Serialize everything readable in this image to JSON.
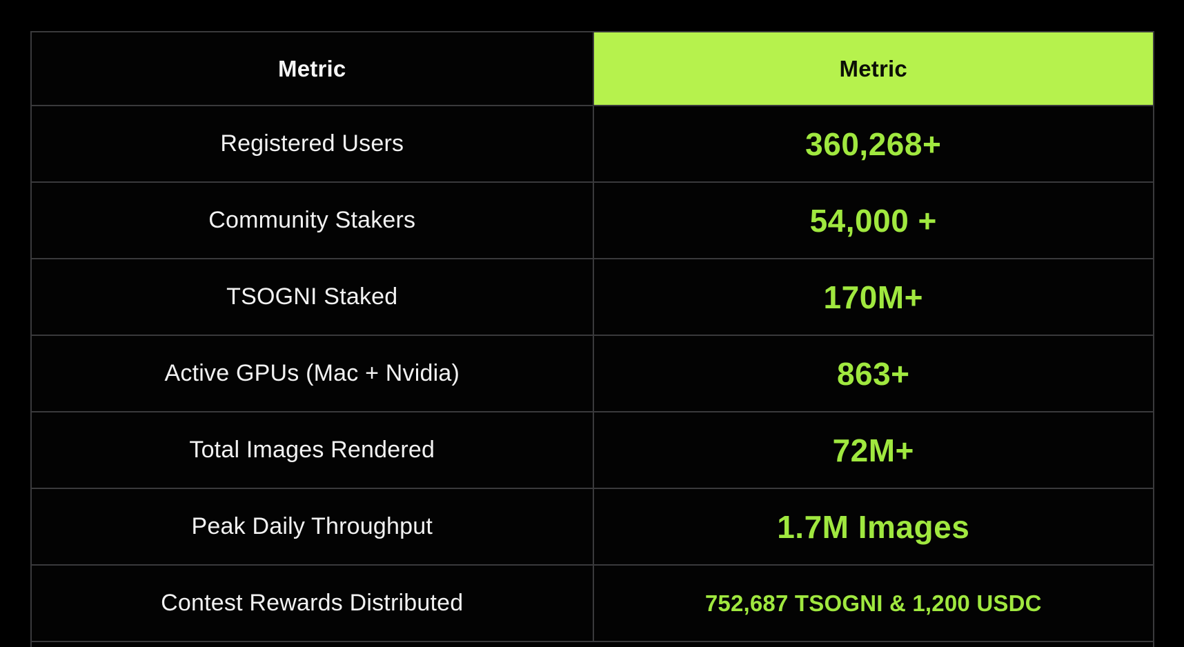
{
  "colors": {
    "accent_header_bg": "#b6f24d",
    "accent_value_text": "#a0e83f",
    "border": "#3a3a3c",
    "background": "#000000",
    "label_text": "#f2f2f2",
    "header_text_on_green": "#0c0f07"
  },
  "table": {
    "header": {
      "left": "Metric",
      "right": "Metric"
    },
    "rows": [
      {
        "metric": "Registered Users",
        "value": "360,268+",
        "value_small": false
      },
      {
        "metric": "Community Stakers",
        "value": "54,000 +",
        "value_small": false
      },
      {
        "metric": "TSOGNI Staked",
        "value": "170M+",
        "value_small": false
      },
      {
        "metric": "Active GPUs (Mac + Nvidia)",
        "value": "863+",
        "value_small": false
      },
      {
        "metric": "Total Images Rendered",
        "value": "72M+",
        "value_small": false
      },
      {
        "metric": "Peak Daily Throughput",
        "value": "1.7M Images",
        "value_small": false
      },
      {
        "metric": "Contest Rewards Distributed",
        "value": "752,687 TSOGNI & 1,200 USDC",
        "value_small": true
      }
    ]
  },
  "chart_data": {
    "type": "table",
    "title": "",
    "columns": [
      "Metric",
      "Metric"
    ],
    "rows": [
      [
        "Registered Users",
        "360,268+"
      ],
      [
        "Community Stakers",
        "54,000 +"
      ],
      [
        "TSOGNI Staked",
        "170M+"
      ],
      [
        "Active GPUs (Mac + Nvidia)",
        "863+"
      ],
      [
        "Total Images Rendered",
        "72M+"
      ],
      [
        "Peak Daily Throughput",
        "1.7M Images"
      ],
      [
        "Contest Rewards Distributed",
        "752,687 TSOGNI & 1,200 USDC"
      ]
    ],
    "notes": {
      "numeric_values": {
        "registered_users": 360268,
        "community_stakers": 54000,
        "tsogni_staked": 170000000,
        "active_gpus": 863,
        "total_images_rendered": 72000000,
        "peak_daily_throughput_images": 1700000,
        "contest_rewards_tsogni": 752687,
        "contest_rewards_usdc": 1200
      }
    }
  }
}
